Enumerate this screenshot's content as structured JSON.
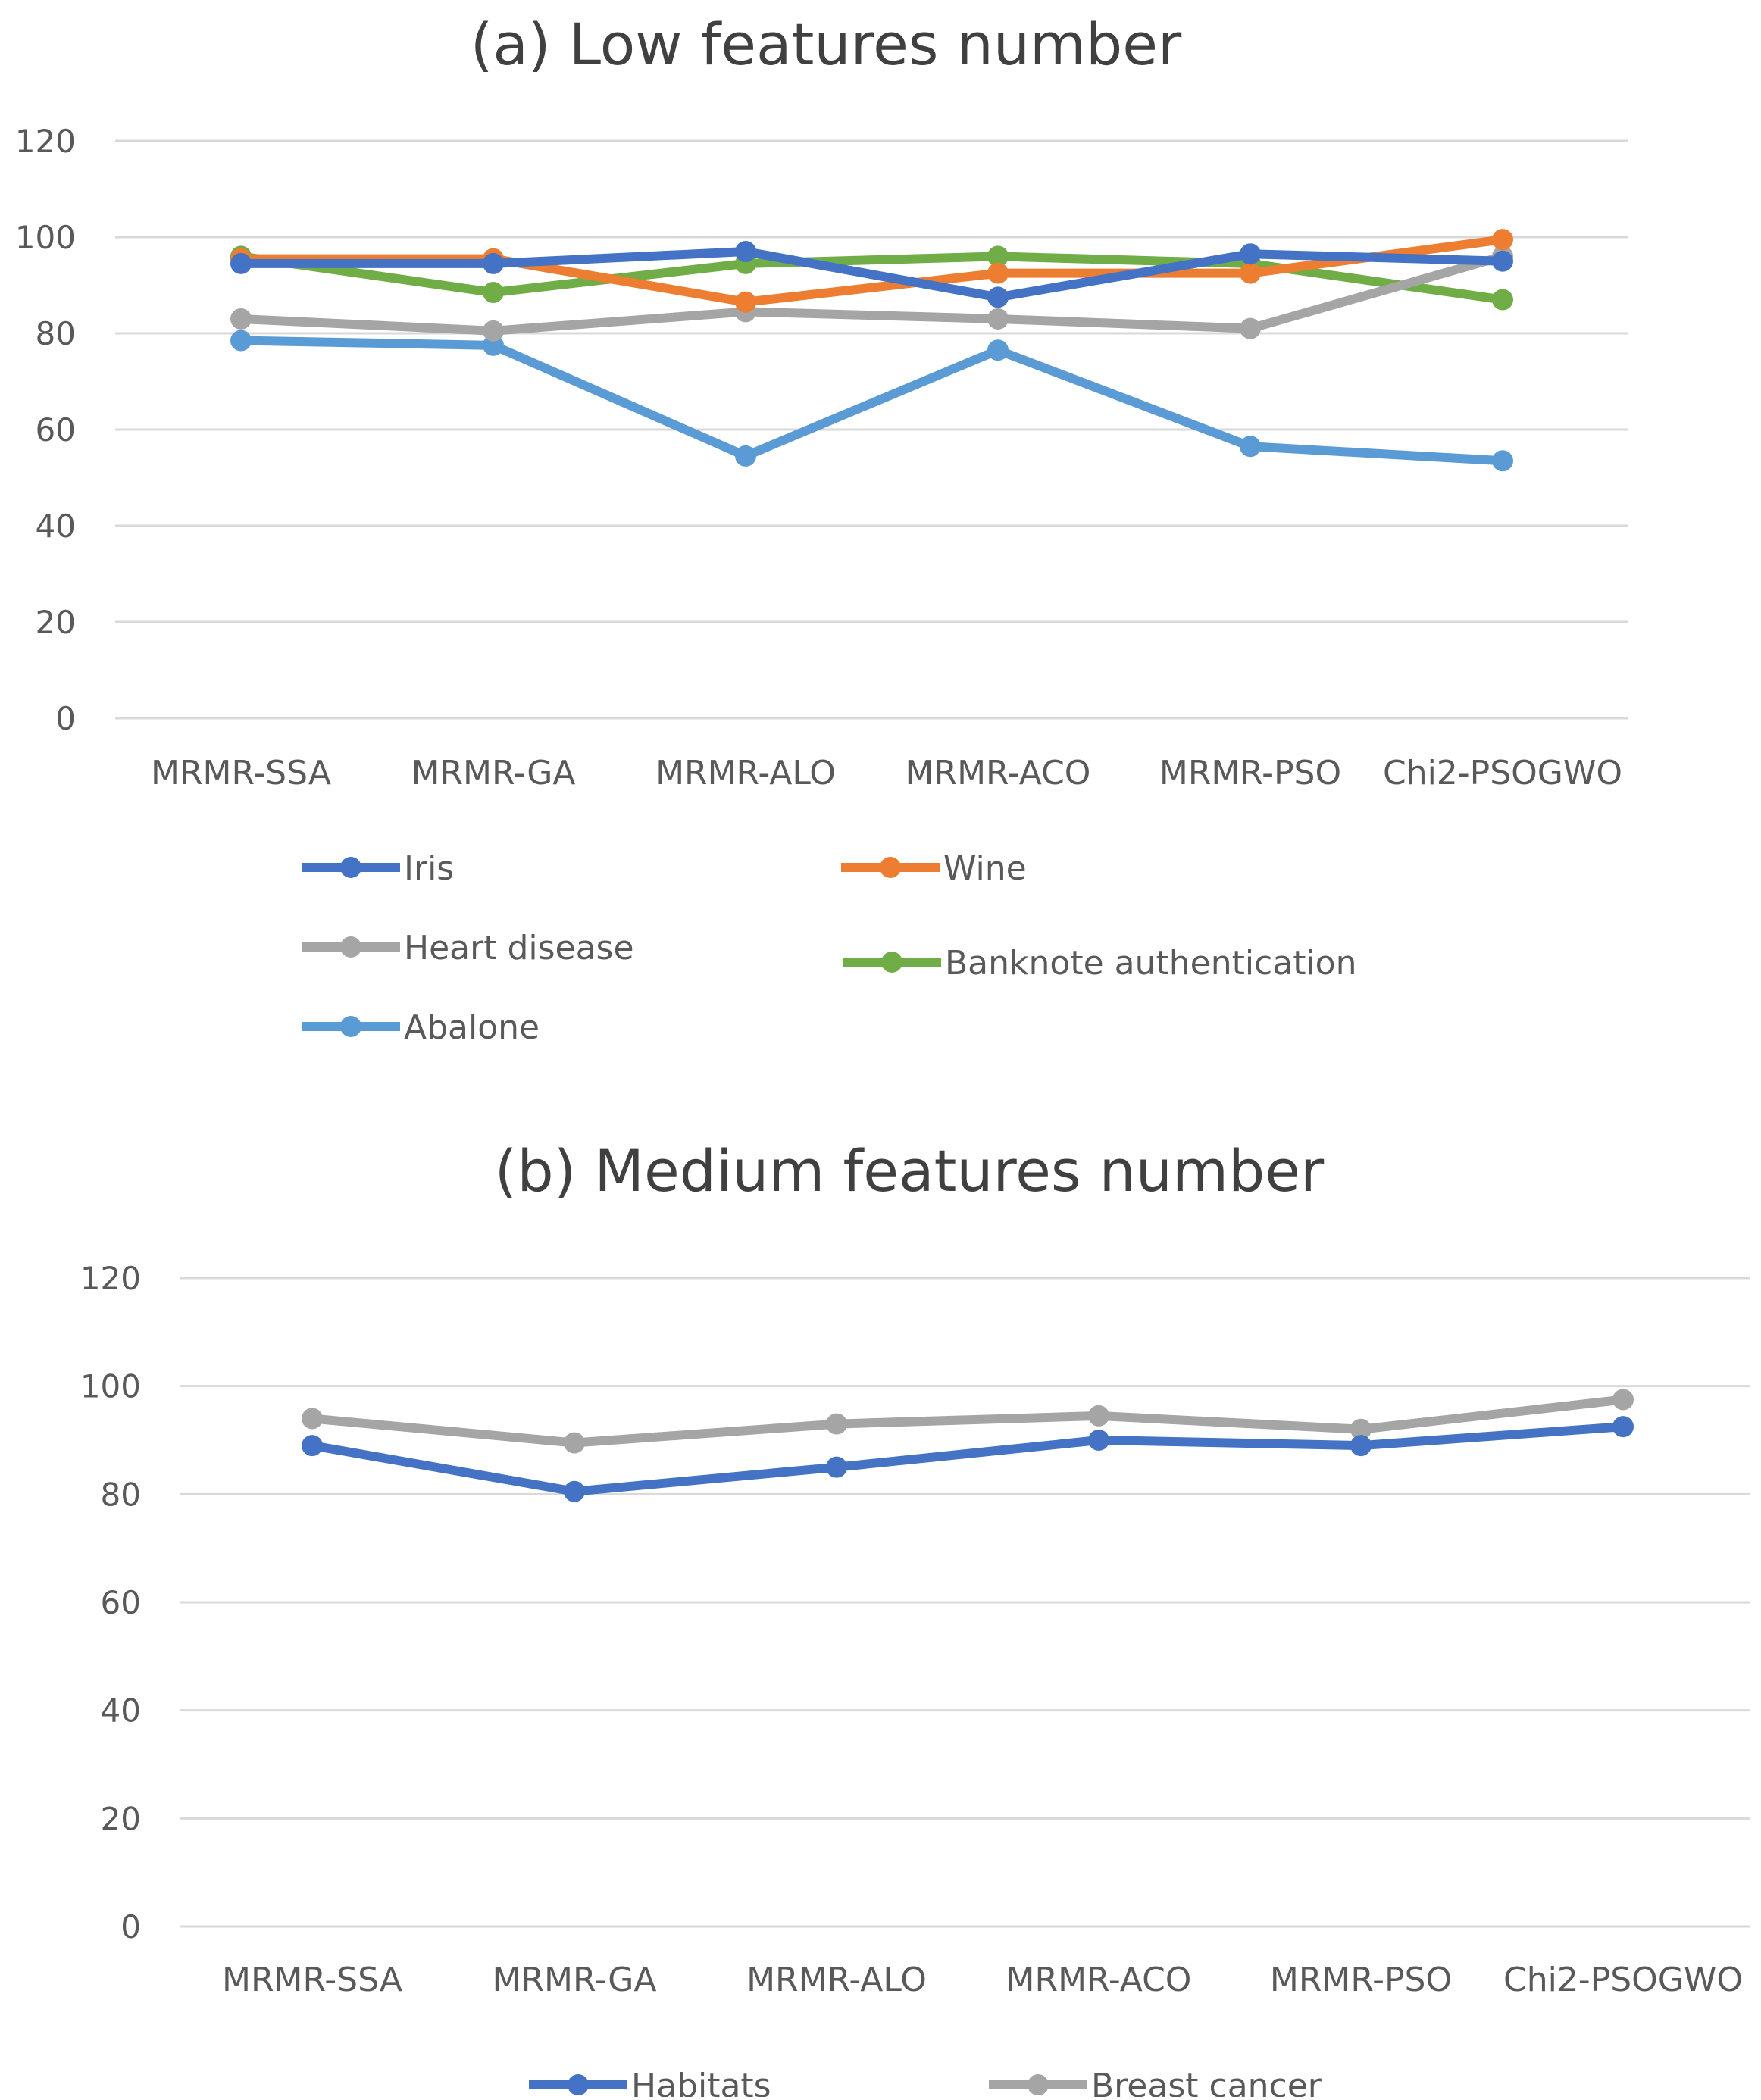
{
  "chart_data": [
    {
      "type": "line",
      "title": "(a) Low features number",
      "xlabel": "",
      "ylabel": "",
      "categories": [
        "MRMR-SSA",
        "MRMR-GA",
        "MRMR-ALO",
        "MRMR-ACO",
        "MRMR-PSO",
        "Chi2-PSOGWO"
      ],
      "ylim": [
        0,
        120
      ],
      "yticks": [
        0,
        20,
        40,
        60,
        80,
        100,
        120
      ],
      "grid": true,
      "legend_position": "bottom",
      "series": [
        {
          "name": "Iris",
          "color": "#4472c4",
          "values": [
            94.5,
            94.5,
            97,
            87.5,
            96.5,
            95
          ]
        },
        {
          "name": "Wine",
          "color": "#ed7d31",
          "values": [
            95.5,
            95.5,
            86.5,
            92.5,
            92.5,
            99.5
          ]
        },
        {
          "name": "Heart disease",
          "color": "#a5a5a5",
          "values": [
            83,
            80.5,
            84.5,
            83,
            81,
            96
          ]
        },
        {
          "name": "Banknote authentication",
          "color": "#70ad47",
          "values": [
            96,
            88.5,
            94.5,
            96,
            94.5,
            87
          ]
        },
        {
          "name": "Abalone",
          "color": "#5b9bd5",
          "values": [
            78.5,
            77.5,
            54.5,
            76.5,
            56.5,
            53.5
          ]
        }
      ]
    },
    {
      "type": "line",
      "title": "(b) Medium features number",
      "xlabel": "",
      "ylabel": "",
      "categories": [
        "MRMR-SSA",
        "MRMR-GA",
        "MRMR-ALO",
        "MRMR-ACO",
        "MRMR-PSO",
        "Chi2-PSOGWO"
      ],
      "ylim": [
        0,
        120
      ],
      "yticks": [
        0,
        20,
        40,
        60,
        80,
        100,
        120
      ],
      "grid": true,
      "legend_position": "bottom",
      "series": [
        {
          "name": "Habitats",
          "color": "#4472c4",
          "values": [
            89,
            80.5,
            85,
            90,
            89,
            92.5
          ]
        },
        {
          "name": "Breast cancer",
          "color": "#a5a5a5",
          "values": [
            94,
            89.5,
            93,
            94.5,
            92,
            97.5
          ]
        }
      ]
    }
  ]
}
